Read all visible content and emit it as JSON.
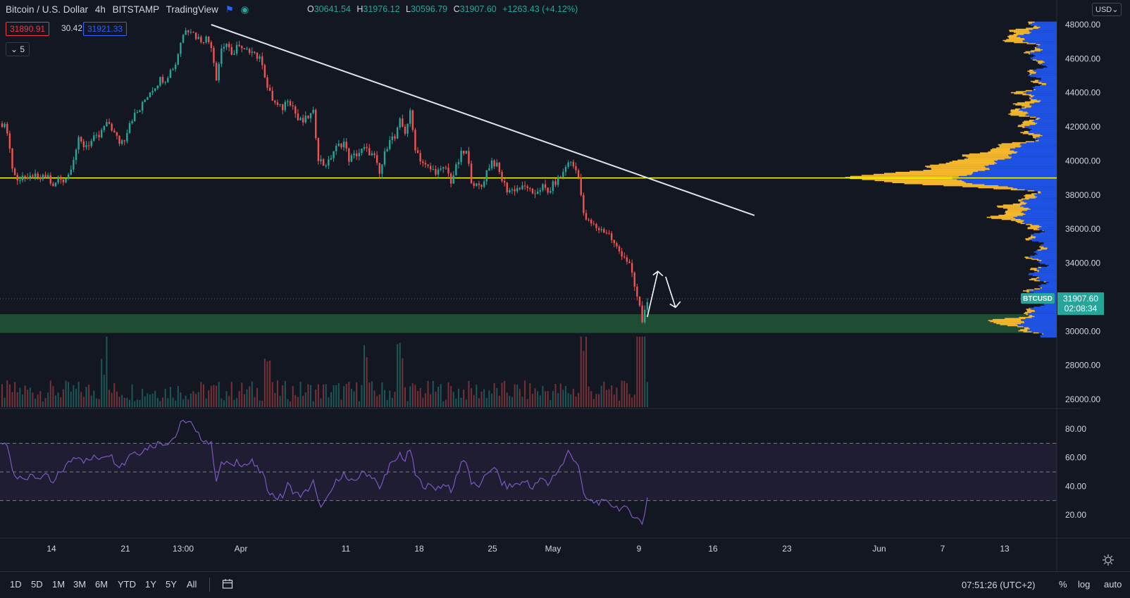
{
  "header": {
    "symbol": "Bitcoin / U.S. Dollar",
    "interval": "4h",
    "exchange": "BITSTAMP",
    "source": "TradingView",
    "ohlc": {
      "o_label": "O",
      "o": "30641.54",
      "h_label": "H",
      "h": "31976.12",
      "l_label": "L",
      "l": "30596.79",
      "c_label": "C",
      "c": "31907.60",
      "change": "+1263.43 (+4.12%)"
    }
  },
  "trade": {
    "sell": "31890.91",
    "spread": "30.42",
    "buy": "31921.33"
  },
  "indicator_count": "5",
  "currency": "USD",
  "chart_data": {
    "type": "candlestick",
    "title": "Bitcoin / U.S. Dollar",
    "price_axis": {
      "ticks": [
        "48000.00",
        "46000.00",
        "44000.00",
        "42000.00",
        "40000.00",
        "38000.00",
        "36000.00",
        "34000.00",
        "32000.00",
        "30000.00",
        "28000.00",
        "26000.00"
      ],
      "range": [
        25700,
        48500
      ]
    },
    "rsi_axis": {
      "ticks": [
        "80.00",
        "60.00",
        "40.00",
        "20.00"
      ],
      "range": [
        5,
        90
      ],
      "bands": [
        30,
        50,
        70
      ]
    },
    "time_axis": [
      "14",
      "21",
      "13:00",
      "Apr",
      "11",
      "18",
      "25",
      "May",
      "9",
      "16",
      "23",
      "Jun",
      "7",
      "13"
    ],
    "current": {
      "label": "BTCUSD",
      "price": "31907.60",
      "countdown": "02:08:34",
      "value": 31907.6
    },
    "horizontal_level": 39000,
    "support_zone": [
      29900,
      31000
    ],
    "trendline": {
      "from": [
        "Mar 28",
        48000
      ],
      "to": [
        "May 19",
        36800
      ]
    },
    "price_path": [
      [
        0,
        42200
      ],
      [
        2,
        41800
      ],
      [
        4,
        39600
      ],
      [
        6,
        38800
      ],
      [
        8,
        39200
      ],
      [
        10,
        38800
      ],
      [
        12,
        39200
      ],
      [
        14,
        38900
      ],
      [
        16,
        39000
      ],
      [
        18,
        39100
      ],
      [
        20,
        38400
      ],
      [
        22,
        39000
      ],
      [
        24,
        38900
      ],
      [
        26,
        39200
      ],
      [
        28,
        40200
      ],
      [
        30,
        41200
      ],
      [
        32,
        40900
      ],
      [
        34,
        41000
      ],
      [
        36,
        41300
      ],
      [
        38,
        41400
      ],
      [
        40,
        42000
      ],
      [
        42,
        42200
      ],
      [
        44,
        41600
      ],
      [
        46,
        41100
      ],
      [
        48,
        41300
      ],
      [
        50,
        42300
      ],
      [
        52,
        42700
      ],
      [
        54,
        43000
      ],
      [
        56,
        43600
      ],
      [
        58,
        44100
      ],
      [
        60,
        44400
      ],
      [
        62,
        44800
      ],
      [
        64,
        44800
      ],
      [
        66,
        45300
      ],
      [
        68,
        45700
      ],
      [
        70,
        47000
      ],
      [
        72,
        47800
      ],
      [
        74,
        47700
      ],
      [
        76,
        47300
      ],
      [
        78,
        47100
      ],
      [
        80,
        47200
      ],
      [
        82,
        46800
      ],
      [
        84,
        44900
      ],
      [
        86,
        46600
      ],
      [
        88,
        46900
      ],
      [
        90,
        46100
      ],
      [
        92,
        46800
      ],
      [
        94,
        46500
      ],
      [
        96,
        46400
      ],
      [
        98,
        46600
      ],
      [
        100,
        46100
      ],
      [
        102,
        45800
      ],
      [
        104,
        44300
      ],
      [
        106,
        43600
      ],
      [
        108,
        43200
      ],
      [
        110,
        43100
      ],
      [
        112,
        43700
      ],
      [
        114,
        43200
      ],
      [
        116,
        42400
      ],
      [
        118,
        42300
      ],
      [
        120,
        42600
      ],
      [
        122,
        42800
      ],
      [
        124,
        40200
      ],
      [
        126,
        39800
      ],
      [
        128,
        39900
      ],
      [
        130,
        40600
      ],
      [
        132,
        40900
      ],
      [
        134,
        41100
      ],
      [
        136,
        40100
      ],
      [
        138,
        40300
      ],
      [
        140,
        40500
      ],
      [
        142,
        40700
      ],
      [
        144,
        40500
      ],
      [
        146,
        40200
      ],
      [
        148,
        39200
      ],
      [
        150,
        40400
      ],
      [
        152,
        41400
      ],
      [
        154,
        41300
      ],
      [
        156,
        42300
      ],
      [
        158,
        41700
      ],
      [
        160,
        42800
      ],
      [
        162,
        40800
      ],
      [
        164,
        40100
      ],
      [
        166,
        39700
      ],
      [
        168,
        39500
      ],
      [
        170,
        39400
      ],
      [
        172,
        39400
      ],
      [
        174,
        39600
      ],
      [
        176,
        38800
      ],
      [
        178,
        39600
      ],
      [
        180,
        40400
      ],
      [
        182,
        40500
      ],
      [
        184,
        38900
      ],
      [
        186,
        38500
      ],
      [
        188,
        38500
      ],
      [
        190,
        39400
      ],
      [
        192,
        40000
      ],
      [
        194,
        39700
      ],
      [
        196,
        38900
      ],
      [
        198,
        38300
      ],
      [
        200,
        38300
      ],
      [
        202,
        38400
      ],
      [
        204,
        38400
      ],
      [
        206,
        38500
      ],
      [
        208,
        37900
      ],
      [
        210,
        38300
      ],
      [
        212,
        38500
      ],
      [
        214,
        38100
      ],
      [
        216,
        38600
      ],
      [
        218,
        38900
      ],
      [
        220,
        39300
      ],
      [
        222,
        40000
      ],
      [
        224,
        39700
      ],
      [
        226,
        39200
      ],
      [
        228,
        36800
      ],
      [
        230,
        36400
      ],
      [
        232,
        36200
      ],
      [
        234,
        36000
      ],
      [
        236,
        35900
      ],
      [
        238,
        35700
      ],
      [
        240,
        35100
      ],
      [
        242,
        34700
      ],
      [
        244,
        34400
      ],
      [
        246,
        33900
      ],
      [
        248,
        32600
      ],
      [
        250,
        31400
      ],
      [
        251,
        30600
      ],
      [
        252,
        31200
      ],
      [
        253,
        31900
      ]
    ],
    "rsi_path": [
      [
        0,
        70
      ],
      [
        2,
        68
      ],
      [
        4,
        52
      ],
      [
        6,
        46
      ],
      [
        8,
        48
      ],
      [
        10,
        45
      ],
      [
        12,
        47
      ],
      [
        14,
        46
      ],
      [
        16,
        47
      ],
      [
        18,
        46
      ],
      [
        20,
        41
      ],
      [
        22,
        48
      ],
      [
        24,
        52
      ],
      [
        26,
        56
      ],
      [
        28,
        60
      ],
      [
        30,
        62
      ],
      [
        32,
        58
      ],
      [
        34,
        58
      ],
      [
        36,
        60
      ],
      [
        38,
        60
      ],
      [
        40,
        62
      ],
      [
        42,
        63
      ],
      [
        44,
        58
      ],
      [
        46,
        55
      ],
      [
        48,
        56
      ],
      [
        50,
        63
      ],
      [
        52,
        64
      ],
      [
        54,
        64
      ],
      [
        56,
        66
      ],
      [
        58,
        68
      ],
      [
        60,
        69
      ],
      [
        62,
        71
      ],
      [
        64,
        70
      ],
      [
        66,
        72
      ],
      [
        68,
        75
      ],
      [
        70,
        83
      ],
      [
        72,
        86
      ],
      [
        74,
        84
      ],
      [
        76,
        77
      ],
      [
        78,
        74
      ],
      [
        80,
        72
      ],
      [
        82,
        69
      ],
      [
        84,
        45
      ],
      [
        86,
        55
      ],
      [
        88,
        57
      ],
      [
        90,
        53
      ],
      [
        92,
        58
      ],
      [
        94,
        56
      ],
      [
        96,
        55
      ],
      [
        98,
        57
      ],
      [
        100,
        52
      ],
      [
        102,
        49
      ],
      [
        104,
        39
      ],
      [
        106,
        34
      ],
      [
        108,
        32
      ],
      [
        110,
        33
      ],
      [
        112,
        41
      ],
      [
        114,
        37
      ],
      [
        116,
        34
      ],
      [
        118,
        34
      ],
      [
        120,
        38
      ],
      [
        122,
        43
      ],
      [
        124,
        28
      ],
      [
        126,
        27
      ],
      [
        128,
        32
      ],
      [
        130,
        40
      ],
      [
        132,
        46
      ],
      [
        134,
        49
      ],
      [
        136,
        42
      ],
      [
        138,
        44
      ],
      [
        140,
        47
      ],
      [
        142,
        50
      ],
      [
        144,
        48
      ],
      [
        146,
        46
      ],
      [
        148,
        37
      ],
      [
        150,
        47
      ],
      [
        152,
        55
      ],
      [
        154,
        56
      ],
      [
        156,
        63
      ],
      [
        158,
        58
      ],
      [
        160,
        66
      ],
      [
        162,
        48
      ],
      [
        164,
        43
      ],
      [
        166,
        40
      ],
      [
        168,
        40
      ],
      [
        170,
        39
      ],
      [
        172,
        40
      ],
      [
        174,
        42
      ],
      [
        176,
        35
      ],
      [
        178,
        46
      ],
      [
        180,
        57
      ],
      [
        182,
        58
      ],
      [
        184,
        42
      ],
      [
        186,
        40
      ],
      [
        188,
        41
      ],
      [
        190,
        49
      ],
      [
        192,
        53
      ],
      [
        194,
        50
      ],
      [
        196,
        42
      ],
      [
        198,
        40
      ],
      [
        200,
        40
      ],
      [
        202,
        42
      ],
      [
        204,
        42
      ],
      [
        206,
        44
      ],
      [
        208,
        38
      ],
      [
        210,
        43
      ],
      [
        212,
        45
      ],
      [
        214,
        41
      ],
      [
        216,
        47
      ],
      [
        218,
        51
      ],
      [
        220,
        56
      ],
      [
        222,
        64
      ],
      [
        224,
        60
      ],
      [
        226,
        55
      ],
      [
        228,
        33
      ],
      [
        230,
        30
      ],
      [
        232,
        29
      ],
      [
        234,
        29
      ],
      [
        236,
        28
      ],
      [
        238,
        29
      ],
      [
        240,
        26
      ],
      [
        242,
        25
      ],
      [
        244,
        24
      ],
      [
        246,
        23
      ],
      [
        248,
        19
      ],
      [
        250,
        16
      ],
      [
        251,
        14
      ],
      [
        252,
        22
      ],
      [
        253,
        32
      ]
    ],
    "volume_spikes": [
      [
        40,
        4
      ],
      [
        104,
        3
      ],
      [
        142,
        3
      ],
      [
        156,
        3
      ],
      [
        228,
        4
      ],
      [
        250,
        8
      ],
      [
        251,
        6
      ]
    ]
  },
  "timeframes": [
    "1D",
    "5D",
    "1M",
    "3M",
    "6M",
    "YTD",
    "1Y",
    "5Y",
    "All"
  ],
  "clock": "07:51:26 (UTC+2)",
  "scale_options": [
    "%",
    "log",
    "auto"
  ],
  "colors": {
    "bg": "#131722",
    "up": "#26a69a",
    "down": "#ef5350",
    "rsi": "#7e57c2",
    "level": "#ffff00",
    "zone": "#1f4d33",
    "vp_up": "#f5b72b",
    "vp_down": "#1e53e5"
  }
}
